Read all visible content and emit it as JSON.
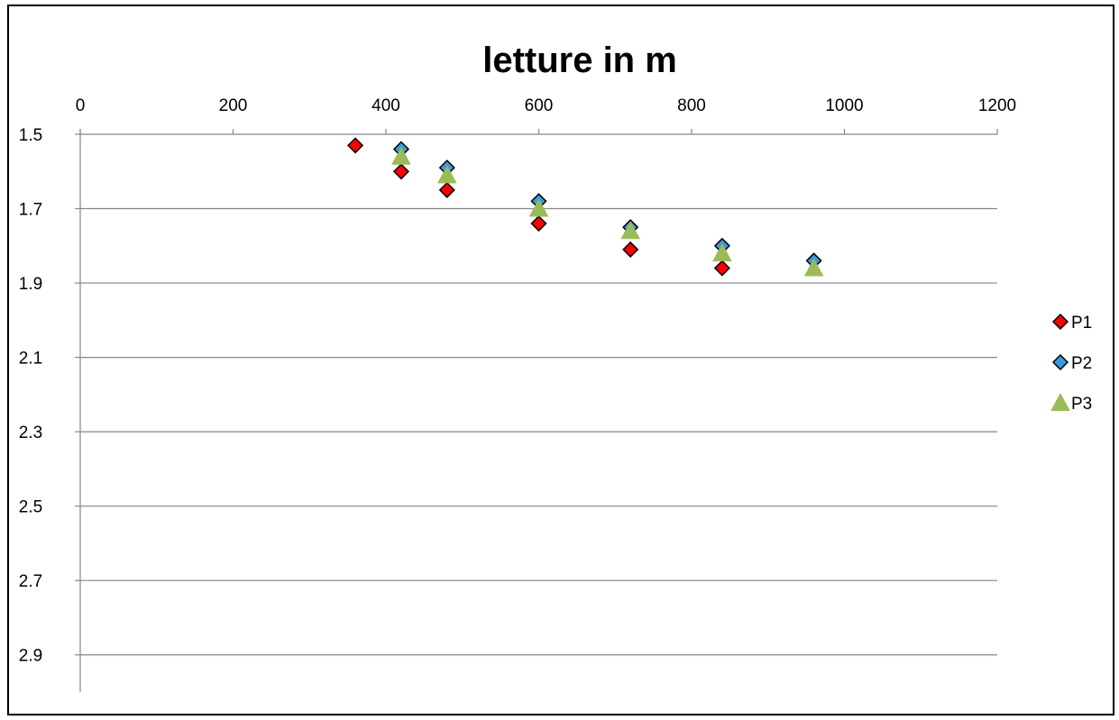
{
  "chart_data": {
    "type": "scatter",
    "title": "letture in m",
    "xlabel": "",
    "ylabel": "",
    "xlim": [
      0,
      1200
    ],
    "ylim": [
      1.5,
      3.0
    ],
    "y_inverted": true,
    "x_axis_position": "top",
    "x_ticks": [
      0,
      200,
      400,
      600,
      800,
      1000,
      1200
    ],
    "x_tick_labels": [
      "0",
      "200",
      "400",
      "600",
      "800",
      "1000",
      "1200"
    ],
    "y_ticks": [
      1.5,
      1.7,
      1.9,
      2.1,
      2.3,
      2.5,
      2.7,
      2.9
    ],
    "y_tick_labels": [
      "1.5",
      "1.7",
      "1.9",
      "2.1",
      "2.3",
      "2.5",
      "2.7",
      "2.9"
    ],
    "grid": "horizontal",
    "legend_position": "right",
    "series": [
      {
        "name": "P1",
        "marker": "diamond",
        "color": "#ff0000",
        "x": [
          360,
          420,
          480,
          600,
          720,
          840
        ],
        "y": [
          1.53,
          1.6,
          1.65,
          1.74,
          1.81,
          1.86
        ]
      },
      {
        "name": "P2",
        "marker": "diamond",
        "color": "#3a9ad9",
        "x": [
          420,
          480,
          600,
          720,
          840,
          960
        ],
        "y": [
          1.54,
          1.59,
          1.68,
          1.75,
          1.8,
          1.84
        ]
      },
      {
        "name": "P3",
        "marker": "triangle",
        "color": "#9bbb59",
        "x": [
          420,
          480,
          600,
          720,
          840,
          960
        ],
        "y": [
          1.56,
          1.61,
          1.7,
          1.76,
          1.82,
          1.86
        ]
      }
    ]
  }
}
